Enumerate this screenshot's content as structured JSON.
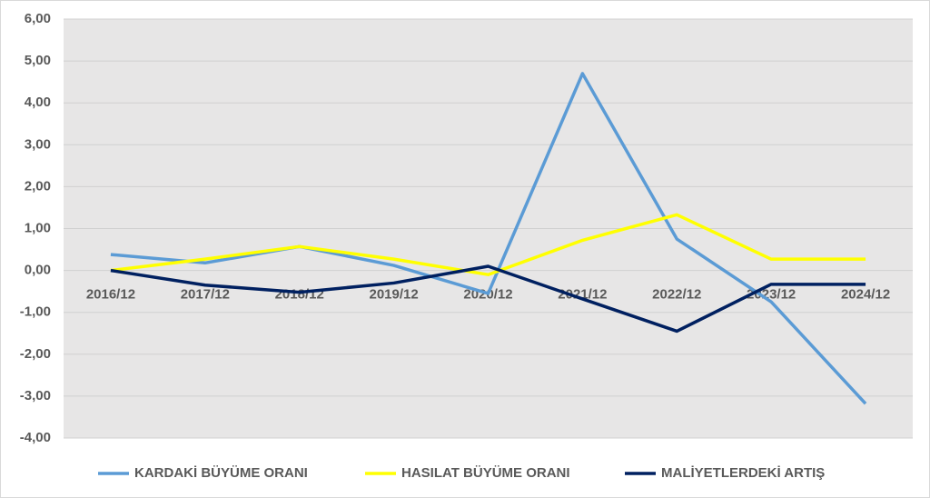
{
  "chart_data": {
    "type": "line",
    "categories": [
      "2016/12",
      "2017/12",
      "2018/12",
      "2019/12",
      "2020/12",
      "2021/12",
      "2022/12",
      "2023/12",
      "2024/12"
    ],
    "series": [
      {
        "name": "KARDAKİ BÜYÜME ORANI",
        "color": "#5b9bd5",
        "values": [
          0.38,
          0.18,
          0.57,
          0.12,
          -0.55,
          4.7,
          0.75,
          -0.75,
          -3.18
        ]
      },
      {
        "name": "HASILAT BÜYÜME ORANI",
        "color": "#ffff00",
        "values": [
          0.0,
          0.27,
          0.57,
          0.27,
          -0.1,
          0.72,
          1.33,
          0.27,
          0.27
        ]
      },
      {
        "name": "MALİYETLERDEKİ ARTIŞ",
        "color": "#002060",
        "values": [
          0.0,
          -0.35,
          -0.52,
          -0.3,
          0.1,
          -0.68,
          -1.45,
          -0.33,
          -0.33
        ]
      }
    ],
    "ylim": [
      -4,
      6
    ],
    "yticks": [
      {
        "value": -4,
        "label": "-4,00"
      },
      {
        "value": -3,
        "label": "-3,00"
      },
      {
        "value": -2,
        "label": "-2,00"
      },
      {
        "value": -1,
        "label": "-1,00"
      },
      {
        "value": 0,
        "label": "0,00"
      },
      {
        "value": 1,
        "label": "1,00"
      },
      {
        "value": 2,
        "label": "2,00"
      },
      {
        "value": 3,
        "label": "3,00"
      },
      {
        "value": 4,
        "label": "4,00"
      },
      {
        "value": 5,
        "label": "5,00"
      },
      {
        "value": 6,
        "label": "6,00"
      }
    ],
    "grid": true,
    "legend": "bottom"
  }
}
